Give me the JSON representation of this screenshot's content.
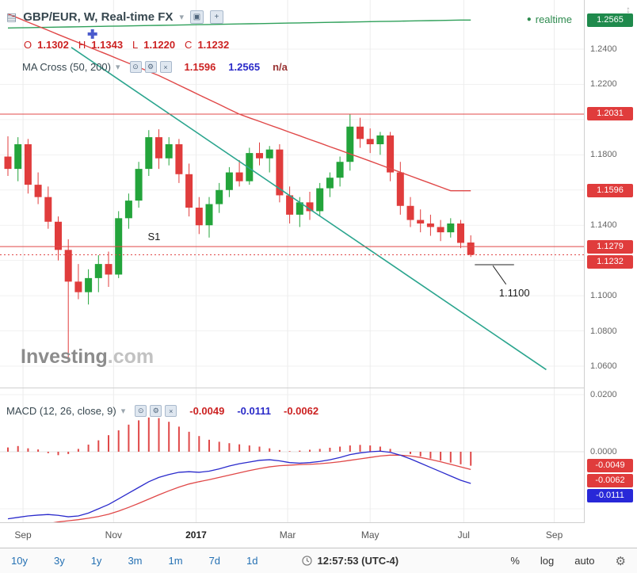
{
  "header": {
    "title": "GBP/EUR, W, Real-time FX",
    "realtime_label": "realtime",
    "ohlc": {
      "o_label": "O",
      "o": "1.1302",
      "h_label": "H",
      "h": "1.1343",
      "l_label": "L",
      "l": "1.1220",
      "c_label": "C",
      "c": "1.1232"
    },
    "indicator": {
      "name": "MA Cross (50, 200)",
      "value1": "1.1596",
      "value2": "1.2565",
      "value3": "n/a"
    }
  },
  "macd_header": {
    "name": "MACD (12, 26, close, 9)",
    "hist": "-0.0049",
    "macd": "-0.0111",
    "signal": "-0.0062"
  },
  "watermark": {
    "name": "Investing",
    "suffix": ".com"
  },
  "toolbar": {
    "ranges": [
      "10y",
      "3y",
      "1y",
      "3m",
      "1m",
      "7d",
      "1d"
    ],
    "time": "12:57:53 (UTC-4)",
    "percent_label": "%",
    "log_label": "log",
    "auto_label": "auto"
  },
  "icons": {
    "doc": "▤",
    "caret": "▾",
    "camera": "▣",
    "plus": "+",
    "eye": "⊙",
    "gear": "⚙",
    "close": "×",
    "dot": "●",
    "axis_scale": "↕"
  },
  "chart_data": [
    {
      "type": "candlestick",
      "symbol": "GBP/EUR",
      "interval": "W",
      "title": "GBP/EUR weekly with MA Cross (50, 200)",
      "ylim": [
        1.05,
        1.265
      ],
      "grid": {
        "min": 1.06,
        "max": 1.24,
        "step": 0.02
      },
      "yticks": [
        {
          "label": "1.2400",
          "price": 1.24
        },
        {
          "label": "1.2200",
          "price": 1.22
        },
        {
          "label": "1.1800",
          "price": 1.18
        },
        {
          "label": "1.1400",
          "price": 1.14
        },
        {
          "label": "1.1000",
          "price": 1.1
        },
        {
          "label": "1.0800",
          "price": 1.08
        },
        {
          "label": "1.0600",
          "price": 1.06
        }
      ],
      "months": [
        {
          "label": "Sep",
          "week": 1.5
        },
        {
          "label": "Nov",
          "week": 10.5
        },
        {
          "label": "2017",
          "week": 18.7,
          "bold": true
        },
        {
          "label": "Mar",
          "week": 27.8
        },
        {
          "label": "May",
          "week": 36.0
        },
        {
          "label": "Jul",
          "week": 45.3
        },
        {
          "label": "Sep",
          "week": 54.3
        }
      ],
      "candles": [
        [
          1.179,
          1.1905,
          1.168,
          1.172
        ],
        [
          1.172,
          1.19,
          1.165,
          1.186
        ],
        [
          1.186,
          1.189,
          1.158,
          1.163
        ],
        [
          1.163,
          1.17,
          1.152,
          1.156
        ],
        [
          1.156,
          1.162,
          1.138,
          1.142
        ],
        [
          1.142,
          1.145,
          1.12,
          1.126
        ],
        [
          1.126,
          1.132,
          1.062,
          1.108
        ],
        [
          1.108,
          1.118,
          1.098,
          1.102
        ],
        [
          1.102,
          1.115,
          1.095,
          1.11
        ],
        [
          1.11,
          1.123,
          1.102,
          1.118
        ],
        [
          1.118,
          1.125,
          1.105,
          1.112
        ],
        [
          1.112,
          1.148,
          1.11,
          1.144
        ],
        [
          1.144,
          1.158,
          1.138,
          1.154
        ],
        [
          1.154,
          1.176,
          1.15,
          1.172
        ],
        [
          1.172,
          1.194,
          1.168,
          1.19
        ],
        [
          1.19,
          1.1945,
          1.172,
          1.178
        ],
        [
          1.178,
          1.19,
          1.174,
          1.186
        ],
        [
          1.186,
          1.189,
          1.164,
          1.169
        ],
        [
          1.169,
          1.175,
          1.145,
          1.15
        ],
        [
          1.15,
          1.156,
          1.135,
          1.14
        ],
        [
          1.14,
          1.156,
          1.133,
          1.152
        ],
        [
          1.152,
          1.164,
          1.147,
          1.16
        ],
        [
          1.16,
          1.173,
          1.156,
          1.17
        ],
        [
          1.17,
          1.177,
          1.162,
          1.165
        ],
        [
          1.165,
          1.184,
          1.163,
          1.181
        ],
        [
          1.181,
          1.187,
          1.174,
          1.178
        ],
        [
          1.178,
          1.185,
          1.17,
          1.183
        ],
        [
          1.183,
          1.186,
          1.153,
          1.157
        ],
        [
          1.157,
          1.162,
          1.141,
          1.146
        ],
        [
          1.146,
          1.156,
          1.139,
          1.153
        ],
        [
          1.153,
          1.159,
          1.143,
          1.148
        ],
        [
          1.148,
          1.164,
          1.145,
          1.161
        ],
        [
          1.161,
          1.17,
          1.156,
          1.167
        ],
        [
          1.167,
          1.179,
          1.162,
          1.176
        ],
        [
          1.176,
          1.2031,
          1.171,
          1.196
        ],
        [
          1.196,
          1.201,
          1.184,
          1.189
        ],
        [
          1.189,
          1.195,
          1.181,
          1.186
        ],
        [
          1.186,
          1.193,
          1.18,
          1.191
        ],
        [
          1.191,
          1.193,
          1.165,
          1.17
        ],
        [
          1.17,
          1.176,
          1.146,
          1.151
        ],
        [
          1.151,
          1.156,
          1.139,
          1.143
        ],
        [
          1.143,
          1.149,
          1.136,
          1.141
        ],
        [
          1.141,
          1.146,
          1.134,
          1.139
        ],
        [
          1.139,
          1.143,
          1.131,
          1.136
        ],
        [
          1.136,
          1.144,
          1.133,
          1.141
        ],
        [
          1.141,
          1.143,
          1.127,
          1.13
        ],
        [
          1.1302,
          1.1343,
          1.122,
          1.1232
        ]
      ],
      "ma50": [
        1.26,
        1.2577,
        1.2553,
        1.253,
        1.2507,
        1.2483,
        1.246,
        1.2437,
        1.2413,
        1.239,
        1.2367,
        1.2343,
        1.232,
        1.2297,
        1.2273,
        1.225,
        1.2223,
        1.2195,
        1.2168,
        1.214,
        1.2113,
        1.2086,
        1.2058,
        1.2031,
        1.201,
        1.199,
        1.1969,
        1.1949,
        1.1928,
        1.1908,
        1.1887,
        1.1867,
        1.1846,
        1.1826,
        1.1805,
        1.1785,
        1.1764,
        1.1743,
        1.1722,
        1.1701,
        1.168,
        1.1659,
        1.1638,
        1.1617,
        1.1596,
        1.1596,
        1.1596
      ],
      "ma200": [
        1.252,
        1.2521,
        1.2522,
        1.2523,
        1.2524,
        1.2525,
        1.2526,
        1.2527,
        1.2528,
        1.2529,
        1.253,
        1.2531,
        1.2532,
        1.2533,
        1.2534,
        1.2535,
        1.2536,
        1.2537,
        1.2538,
        1.2539,
        1.254,
        1.2541,
        1.2542,
        1.2543,
        1.2544,
        1.2545,
        1.2546,
        1.2547,
        1.2548,
        1.2549,
        1.255,
        1.2551,
        1.2552,
        1.2553,
        1.2554,
        1.2555,
        1.2556,
        1.2557,
        1.2558,
        1.2559,
        1.256,
        1.2561,
        1.2562,
        1.2563,
        1.2564,
        1.2565,
        1.2565
      ],
      "trendline": {
        "w1": 6.3,
        "p1": 1.241,
        "w2": 53.5,
        "p2": 1.058,
        "color": "#2ba58e"
      },
      "levels": [
        {
          "price": 1.2031,
          "style": "solid"
        },
        {
          "price": 1.1279,
          "style": "solid"
        },
        {
          "price": 1.1232,
          "style": "dotted"
        }
      ],
      "badges": [
        {
          "text": "1.2565",
          "price": 1.2565,
          "color": "green"
        },
        {
          "text": "1.2031",
          "price": 1.2031,
          "color": "red"
        },
        {
          "text": "1.1596",
          "price": 1.1596,
          "color": "red"
        },
        {
          "text": "1.1279",
          "price": 1.1279,
          "color": "red"
        },
        {
          "text": "1.1232",
          "price": 1.1232,
          "color": "red"
        }
      ],
      "annotations": {
        "texts": [
          {
            "text": "S1",
            "week": 13.9,
            "price": 1.1316
          },
          {
            "text": "1.1100",
            "week": 48.8,
            "price": 1.0995
          }
        ],
        "lines": [
          {
            "w1": 46.4,
            "p1": 1.1176,
            "w2": 50.3,
            "p2": 1.1176
          },
          {
            "w1": 48.2,
            "p1": 1.117,
            "w2": 49.5,
            "p2": 1.1065
          }
        ]
      },
      "marker": {
        "week": 8.4,
        "price": 1.2486,
        "shape": "plus",
        "color": "#4a5acc"
      },
      "colors": {
        "up": "#23a43b",
        "down": "#e03c3c",
        "ma50": "#e04848",
        "ma200": "#2fa05a",
        "level": "#e04848"
      }
    },
    {
      "type": "macd",
      "params": "12, 26, close, 9",
      "grid_values": [
        0.02,
        0,
        -0.02
      ],
      "yticks": [
        {
          "label": "0.0200",
          "value": 0.02
        },
        {
          "label": "0.0000",
          "value": 0.0
        }
      ],
      "histogram": [
        0.0015,
        0.002,
        0.0012,
        0.0008,
        -0.0005,
        -0.0012,
        -0.0008,
        0.001,
        0.0025,
        0.004,
        0.0058,
        0.0075,
        0.0095,
        0.011,
        0.012,
        0.0118,
        0.0105,
        0.0088,
        0.007,
        0.0055,
        0.0042,
        0.0035,
        0.003,
        0.0026,
        0.0022,
        0.0018,
        0.0012,
        0.0006,
        0.0002,
        0.0004,
        0.0007,
        0.001,
        0.0014,
        0.0018,
        0.0022,
        0.0024,
        0.0022,
        0.0018,
        0.001,
        0.0,
        -0.0008,
        -0.0016,
        -0.0024,
        -0.0031,
        -0.0038,
        -0.0044,
        -0.0049
      ],
      "macd_line": [
        -0.0235,
        -0.023,
        -0.0225,
        -0.0222,
        -0.022,
        -0.0223,
        -0.0228,
        -0.0225,
        -0.0215,
        -0.02,
        -0.0185,
        -0.0165,
        -0.0145,
        -0.0125,
        -0.0105,
        -0.009,
        -0.008,
        -0.0072,
        -0.007,
        -0.0072,
        -0.0068,
        -0.006,
        -0.005,
        -0.0042,
        -0.0036,
        -0.003,
        -0.0028,
        -0.0032,
        -0.0038,
        -0.004,
        -0.0038,
        -0.0034,
        -0.0028,
        -0.002,
        -0.001,
        -0.0004,
        0.0,
        0.0002,
        -0.0002,
        -0.0012,
        -0.0025,
        -0.004,
        -0.0055,
        -0.007,
        -0.0085,
        -0.01,
        -0.0111
      ],
      "signal_line": [
        -0.029,
        -0.028,
        -0.027,
        -0.026,
        -0.0252,
        -0.0246,
        -0.0242,
        -0.0238,
        -0.0233,
        -0.0227,
        -0.0219,
        -0.0208,
        -0.0195,
        -0.0181,
        -0.0166,
        -0.0151,
        -0.0137,
        -0.0124,
        -0.0113,
        -0.0105,
        -0.0098,
        -0.009,
        -0.0082,
        -0.0074,
        -0.0066,
        -0.0059,
        -0.0053,
        -0.0049,
        -0.0047,
        -0.0045,
        -0.0044,
        -0.0042,
        -0.0039,
        -0.0035,
        -0.003,
        -0.0025,
        -0.002,
        -0.0015,
        -0.0012,
        -0.0012,
        -0.0015,
        -0.002,
        -0.0027,
        -0.0035,
        -0.0044,
        -0.0053,
        -0.0062
      ],
      "badges": [
        {
          "text": "-0.0049",
          "value": -0.0049,
          "color": "red"
        },
        {
          "text": "-0.0062",
          "value": -0.0062,
          "color": "red"
        },
        {
          "text": "-0.0111",
          "value": -0.0111,
          "color": "blue"
        }
      ],
      "colors": {
        "hist": "#e04848",
        "macd": "#2a2acc",
        "signal": "#e04848"
      }
    }
  ]
}
